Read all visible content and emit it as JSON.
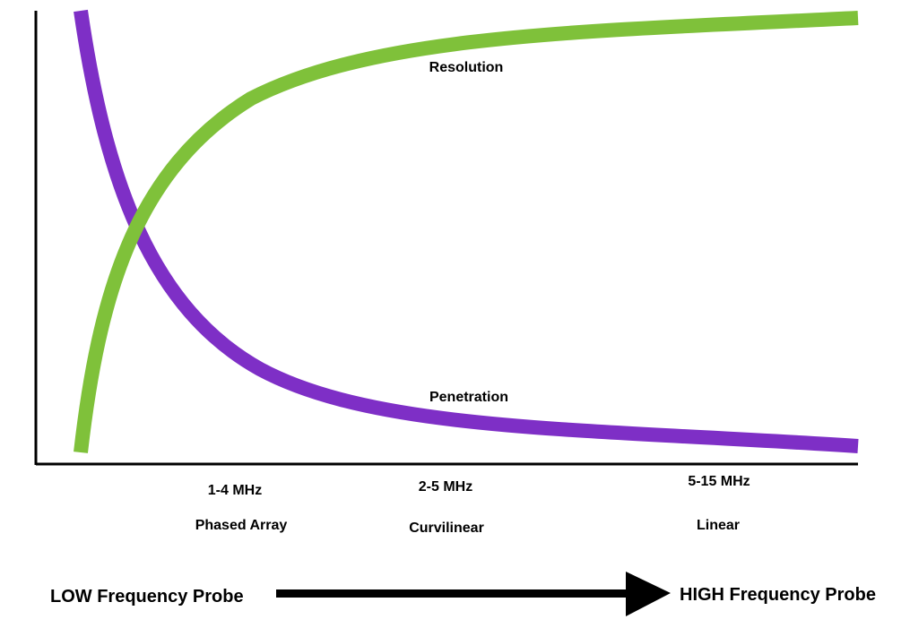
{
  "chart_data": {
    "type": "line",
    "title": "",
    "xlabel": "",
    "ylabel": "",
    "series": [
      {
        "name": "Resolution",
        "color": "#7fc13a"
      },
      {
        "name": "Penetration",
        "color": "#7e2fc6"
      }
    ],
    "categories": [
      {
        "frequency": "1-4 MHz",
        "probe": "Phased Array"
      },
      {
        "frequency": "2-5 MHz",
        "probe": "Curvilinear"
      },
      {
        "frequency": "5-15 MHz",
        "probe": "Linear"
      }
    ],
    "grid": false,
    "legend": "none"
  },
  "arrow": {
    "left_label": "LOW Frequency Probe",
    "right_label": "HIGH Frequency Probe",
    "color": "#000000"
  }
}
